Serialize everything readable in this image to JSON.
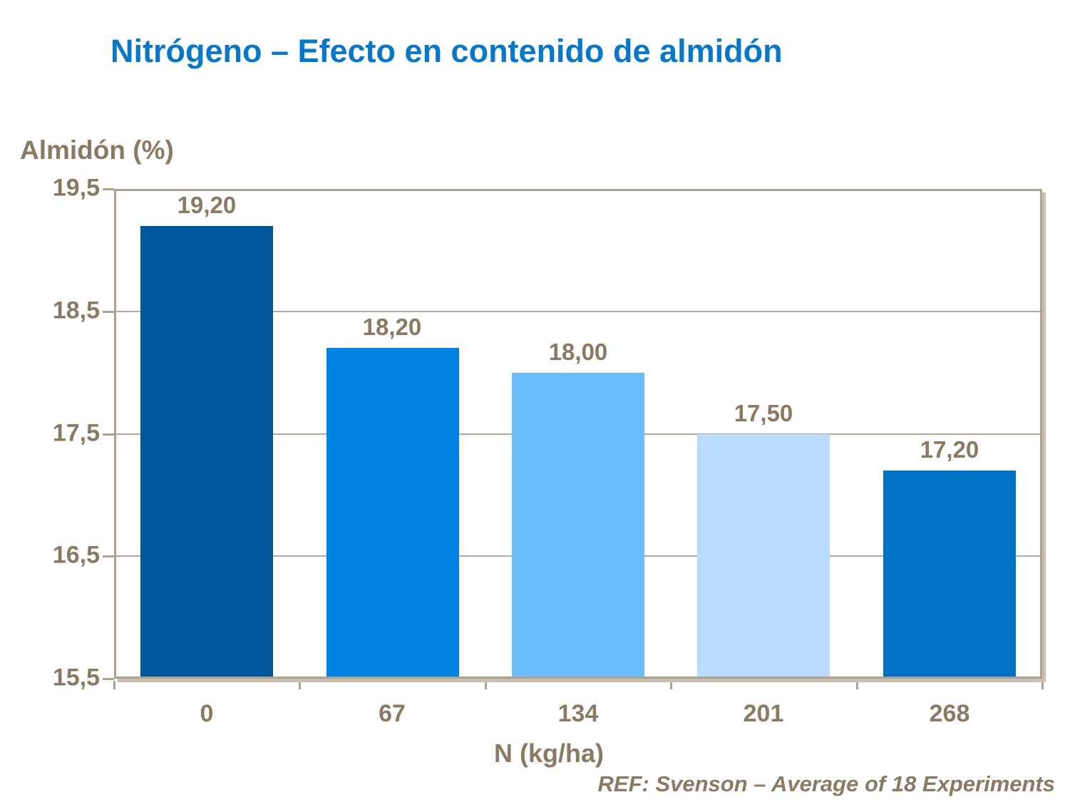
{
  "chart_data": {
    "type": "bar",
    "title": "Nitrógeno – Efecto en contenido de almidón",
    "xlabel": "N (kg/ha)",
    "ylabel": "Almidón (%)",
    "categories": [
      "0",
      "67",
      "134",
      "201",
      "268"
    ],
    "values": [
      19.2,
      18.2,
      18.0,
      17.5,
      17.2
    ],
    "value_labels": [
      "19,20",
      "18,20",
      "18,00",
      "17,50",
      "17,20"
    ],
    "ylim": [
      15.5,
      19.5
    ],
    "yticks": [
      19.5,
      18.5,
      17.5,
      16.5,
      15.5
    ],
    "ytick_labels": [
      "19,5",
      "18,5",
      "17,5",
      "16,5",
      "15,5"
    ],
    "grid": "horizontal",
    "legend": "none",
    "annotation": "REF: Svenson – Average of 18 Experiments",
    "bar_colors": [
      "#00569B",
      "#0082E3",
      "#68BCFC",
      "#B9DCFC",
      "#0072C2"
    ],
    "title_color": "#0977C8",
    "text_color": "#8A7A63",
    "axis_line_color": "#ACA193"
  }
}
